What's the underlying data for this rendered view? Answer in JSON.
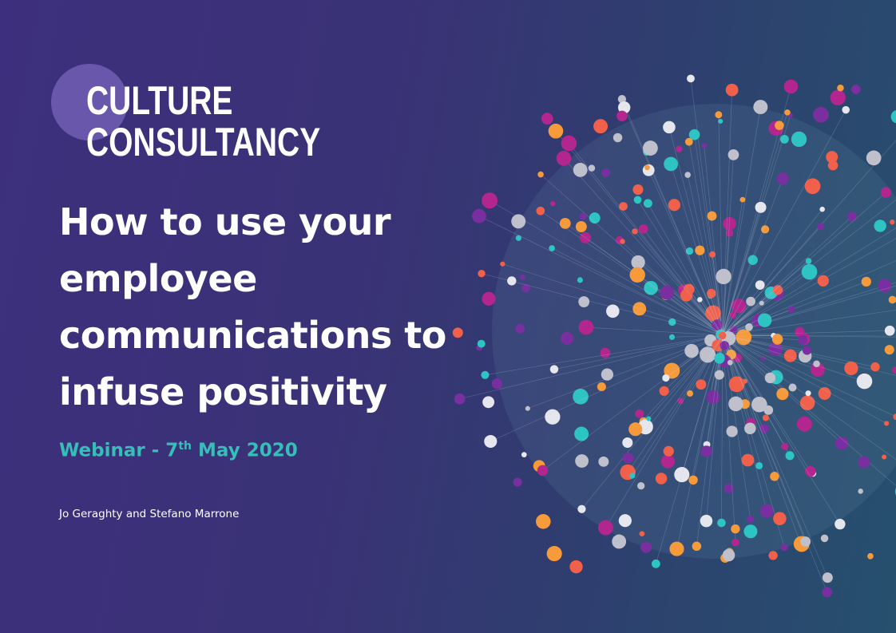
{
  "logo": {
    "line1": "CULTURE",
    "line2": "CONSULTANCY"
  },
  "title": "How to use your employee communications to infuse positivity",
  "subtitle": {
    "prefix": "Webinar - 7",
    "sup": "th",
    "suffix": " May 2020"
  },
  "authors": "Jo Geraghty and Stefano Marrone",
  "colors": {
    "accent": "#36bfb8",
    "dots": [
      "#b3268f",
      "#f79a3a",
      "#2ec4c4",
      "#e6e6ee",
      "#7a2fa0",
      "#f0604a",
      "#c0c0cc"
    ]
  }
}
